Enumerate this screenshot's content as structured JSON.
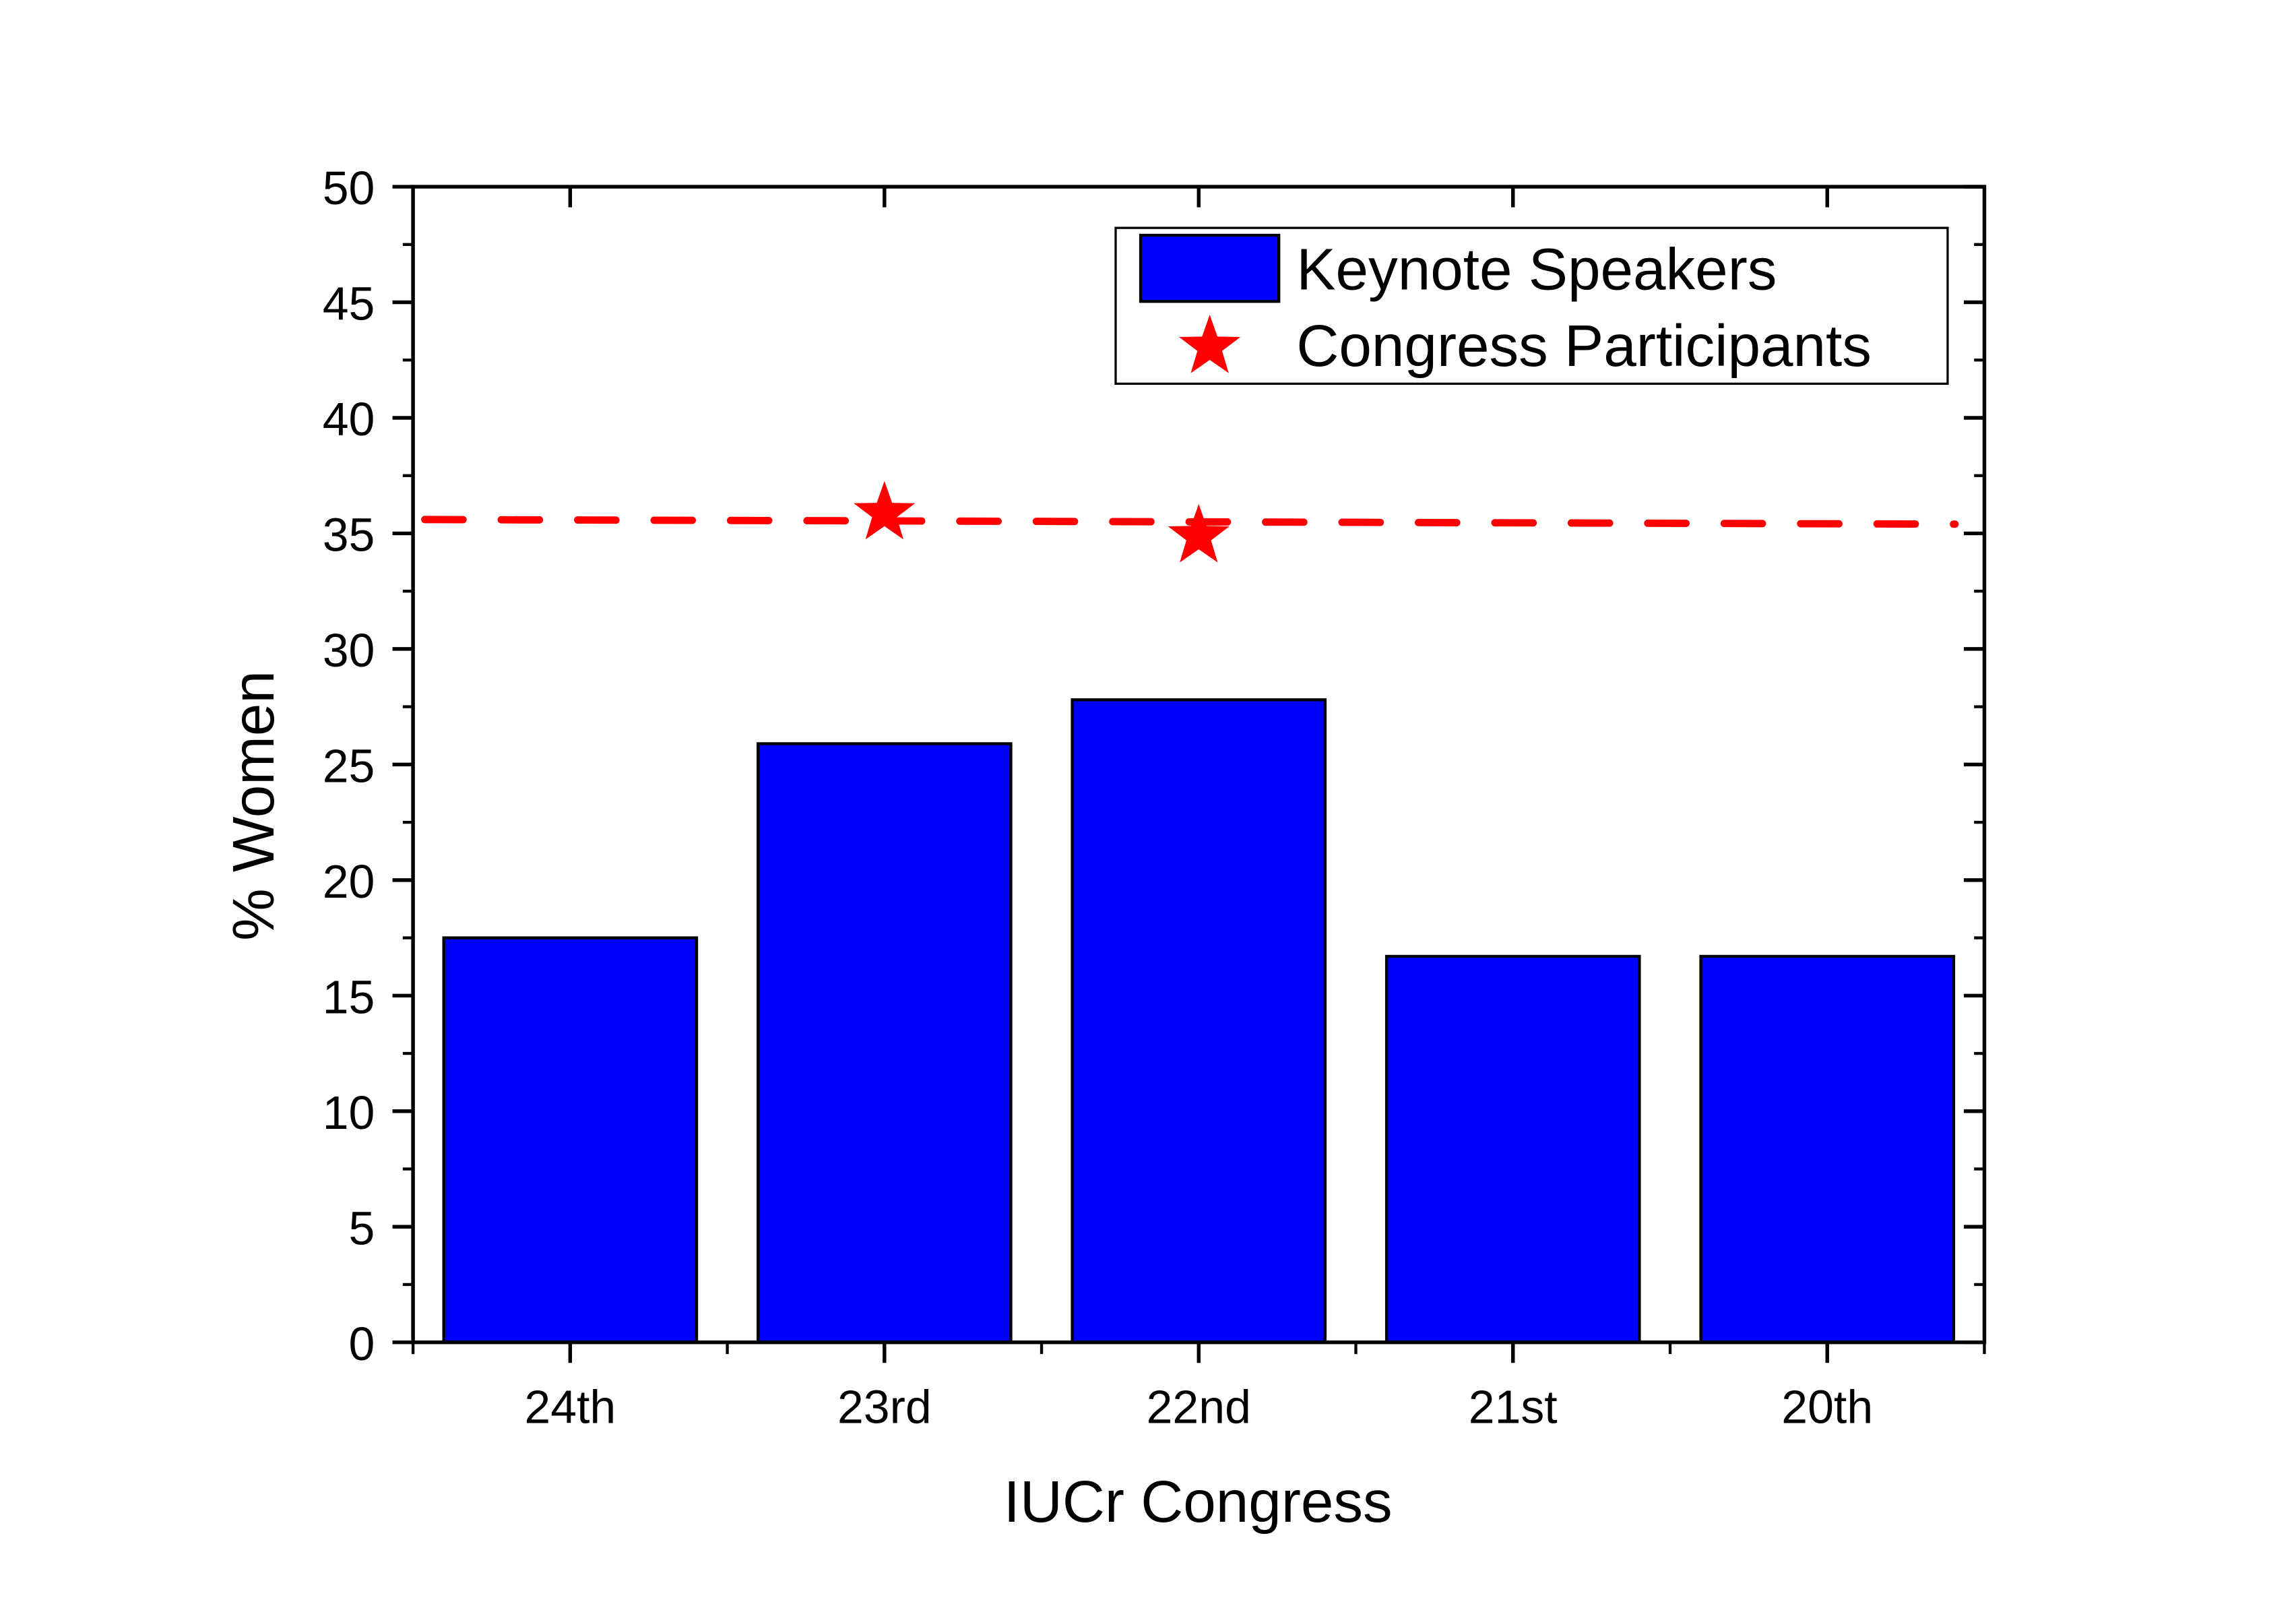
{
  "chart_data": {
    "type": "bar",
    "title": "",
    "xlabel": "IUCr Congress",
    "ylabel": "% Women",
    "ylim": [
      0,
      50
    ],
    "yticks": [
      0,
      5,
      10,
      15,
      20,
      25,
      30,
      35,
      40,
      45,
      50
    ],
    "ytick_labels": [
      "0",
      "5",
      "10",
      "15",
      "20",
      "25",
      "30",
      "35",
      "40",
      "45",
      "50"
    ],
    "categories": [
      "24th",
      "23rd",
      "22nd",
      "21st",
      "20th"
    ],
    "grid": false,
    "legend_position": "top-right",
    "series": [
      {
        "name": "Keynote Speakers",
        "type": "bar",
        "color": "#0000ff",
        "values": [
          17.5,
          25.9,
          27.8,
          16.7,
          16.7
        ]
      },
      {
        "name": "Congress Participants",
        "type": "scatter",
        "marker": "star",
        "color": "#ff0000",
        "values": [
          null,
          36.0,
          35.0,
          null,
          null
        ]
      }
    ],
    "reference_line": {
      "style": "dashed",
      "color": "#ff0000",
      "y_start": 35.6,
      "y_end": 35.4
    }
  }
}
